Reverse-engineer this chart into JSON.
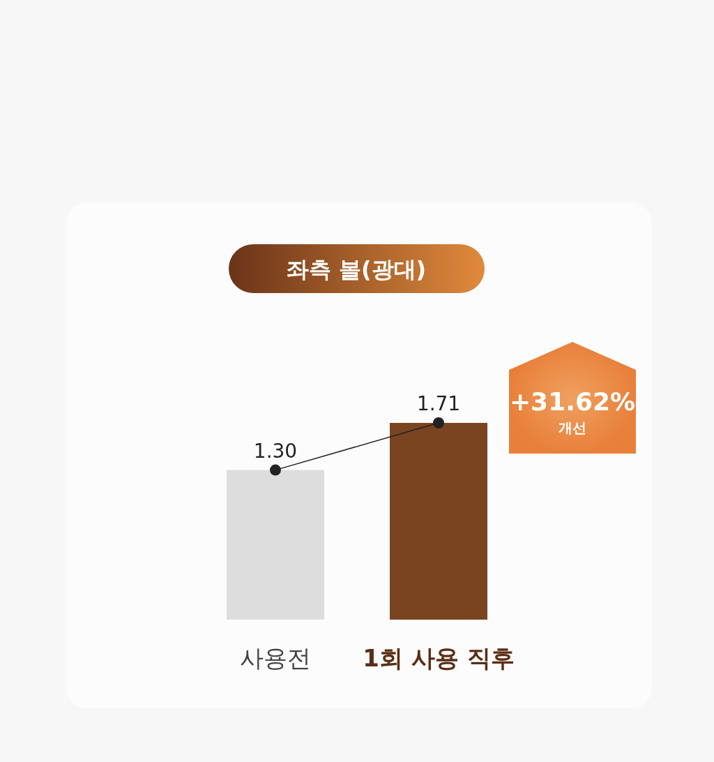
{
  "chart_data": {
    "type": "bar",
    "title": "좌측 볼(광대)",
    "categories": [
      "사용전",
      "1회 사용 직후"
    ],
    "series": [
      {
        "colors": [
          "#dddddd",
          "#7a4420"
        ],
        "values": [
          1.3,
          1.71
        ]
      },
      {
        "type": "line",
        "color": "#222222",
        "marker": "circle",
        "values": [
          1.3,
          1.71
        ],
        "value_labels": [
          "1.30",
          "1.71"
        ]
      }
    ],
    "annotations": [
      "+31.62% 개선"
    ]
  }
}
